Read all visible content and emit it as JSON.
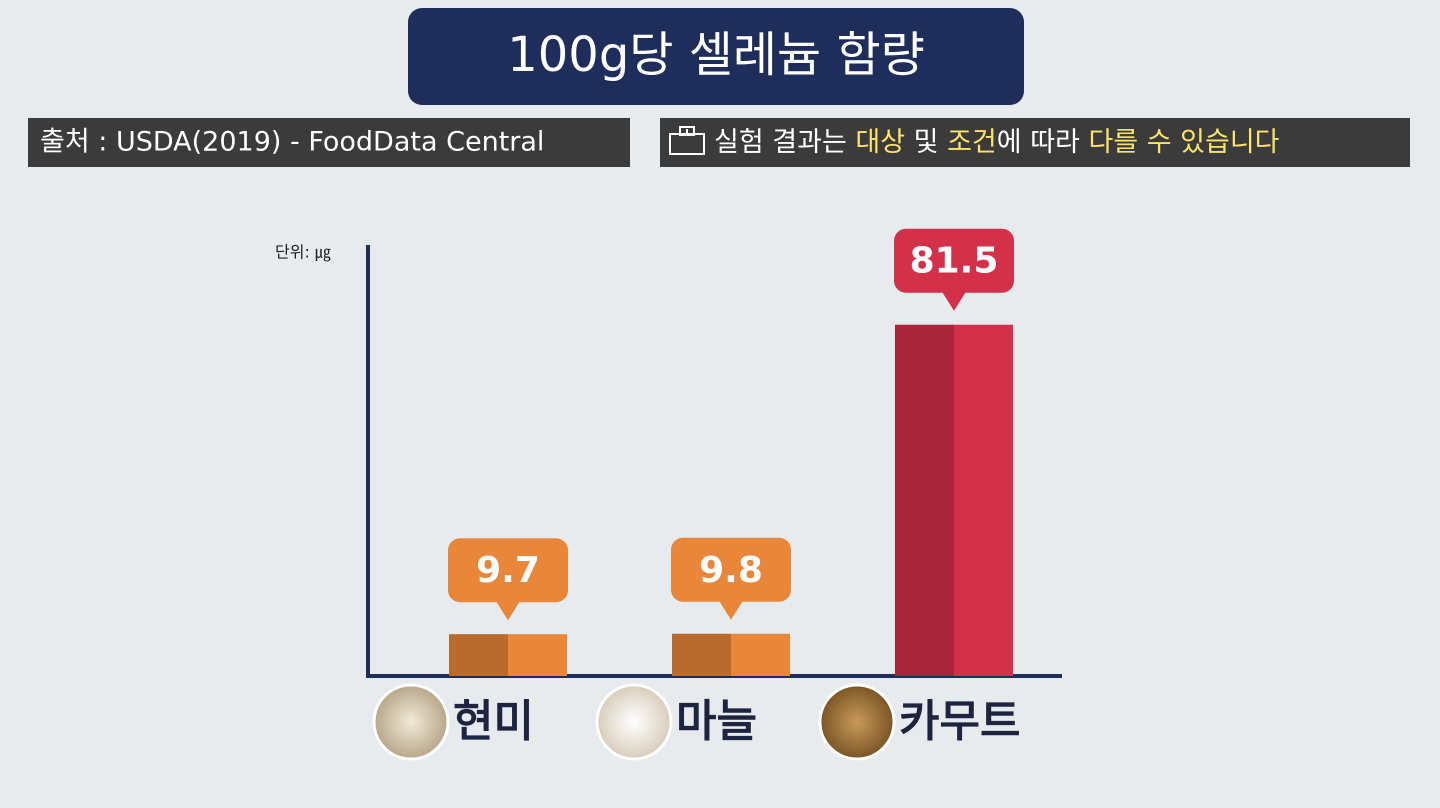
{
  "chart_data": {
    "type": "bar",
    "title": "100g당 셀레늄 함량",
    "source": "출처 : USDA(2019) - FoodData Central",
    "disclaimer": [
      "실험 결과는 ",
      "대상",
      " 및 ",
      "조건",
      "에 따라 ",
      "다를 수 있습니다"
    ],
    "disclaimer_highlight": [
      false,
      true,
      false,
      true,
      false,
      true
    ],
    "unit_label": "단위: ㎍",
    "categories": [
      "현미",
      "마늘",
      "카무트"
    ],
    "values": [
      9.7,
      9.8,
      81.5
    ],
    "colors": [
      "#e8863a",
      "#e8863a",
      "#d3304a"
    ],
    "ylim": [
      0,
      100
    ]
  }
}
